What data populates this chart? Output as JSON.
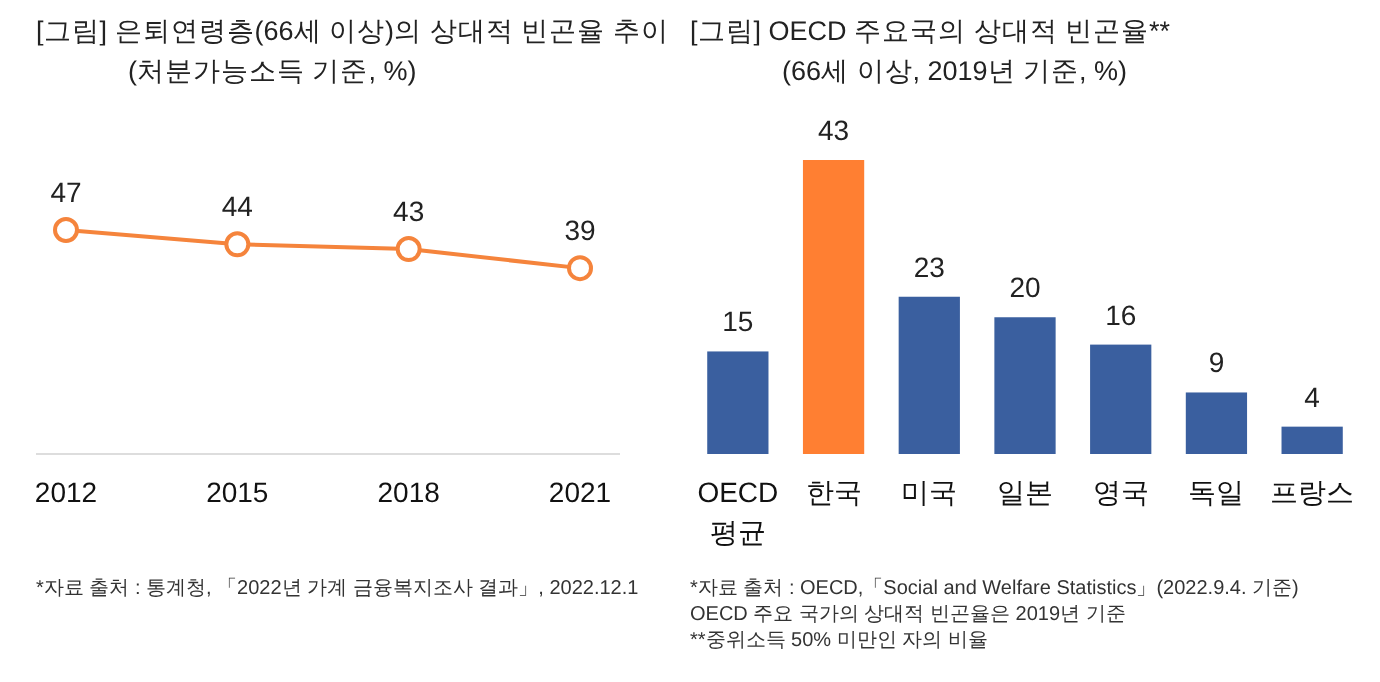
{
  "chart_data": [
    {
      "type": "line",
      "title": "[그림] 은퇴연령층(66세 이상)의 상대적 빈곤율 추이",
      "subtitle": "(처분가능소득 기준, %)",
      "categories": [
        "2012",
        "2015",
        "2018",
        "2021"
      ],
      "values": [
        47,
        44,
        43,
        39
      ],
      "color": "#f5843c",
      "marker": "circle",
      "data_labels": true,
      "annotations": [
        "*자료 출처 : 통계청, 「2022년 가계 금융복지조사 결과」, 2022.12.1"
      ]
    },
    {
      "type": "bar",
      "title": "[그림] OECD 주요국의 상대적 빈곤율**",
      "subtitle": "(66세 이상, 2019년 기준, %)",
      "categories": [
        "OECD 평균",
        "한국",
        "미국",
        "일본",
        "영국",
        "독일",
        "프랑스"
      ],
      "values": [
        15,
        43,
        23,
        20,
        16,
        9,
        4
      ],
      "colors": [
        "#3a5f9f",
        "#ff7f32",
        "#3a5f9f",
        "#3a5f9f",
        "#3a5f9f",
        "#3a5f9f",
        "#3a5f9f"
      ],
      "data_labels": true,
      "annotations": [
        "*자료 출처 : OECD,「Social and Welfare Statistics」(2022.9.4. 기준)",
        "OECD 주요 국가의 상대적 빈곤율은 2019년 기준",
        "**중위소득 50% 미만인 자의 비율"
      ]
    }
  ]
}
